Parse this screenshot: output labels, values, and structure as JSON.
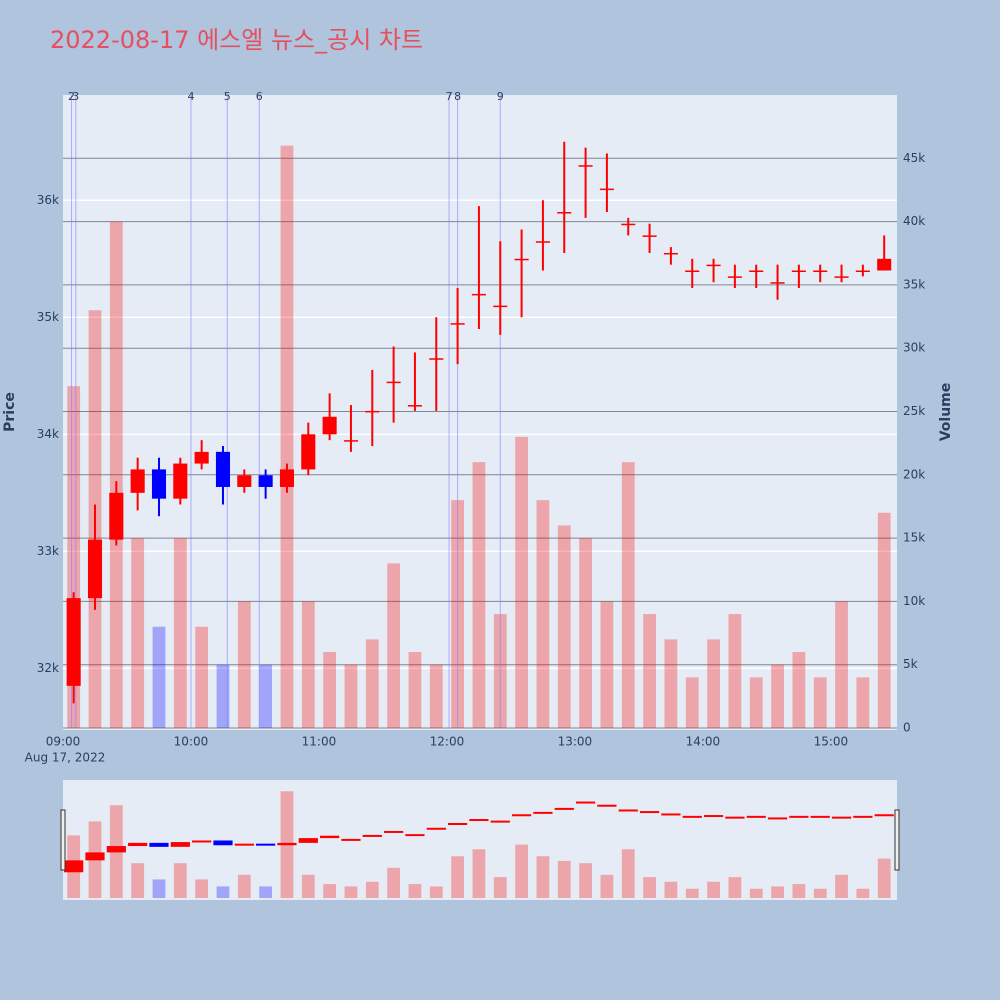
{
  "chart_data": {
    "type": "candlestick",
    "title": "2022-08-17 에스엘 뉴스_공시 차트",
    "title_color": "#e5505f",
    "ylabel": "Price",
    "y2label": "Volume",
    "x": [
      "09:00",
      "09:10",
      "09:20",
      "09:30",
      "09:40",
      "09:50",
      "10:00",
      "10:10",
      "10:20",
      "10:30",
      "10:40",
      "10:50",
      "11:00",
      "11:10",
      "11:20",
      "11:30",
      "11:40",
      "11:50",
      "12:00",
      "12:10",
      "12:20",
      "12:30",
      "12:40",
      "12:50",
      "13:00",
      "13:10",
      "13:20",
      "13:30",
      "13:40",
      "13:50",
      "14:00",
      "14:10",
      "14:20",
      "14:30",
      "14:40",
      "14:50",
      "15:00",
      "15:10",
      "15:20"
    ],
    "open": [
      31850,
      32600,
      33100,
      33500,
      33700,
      33450,
      33750,
      33850,
      33550,
      33650,
      33550,
      33700,
      34000,
      33950,
      34200,
      34450,
      34250,
      34650,
      34950,
      35200,
      35100,
      35500,
      35650,
      35900,
      36300,
      36100,
      35800,
      35700,
      35550,
      35400,
      35450,
      35350,
      35400,
      35300,
      35400,
      35400,
      35350,
      35400,
      35400
    ],
    "high": [
      32650,
      33400,
      33600,
      33800,
      33800,
      33800,
      33950,
      33900,
      33700,
      33700,
      33750,
      34100,
      34350,
      34250,
      34550,
      34750,
      34700,
      35000,
      35250,
      35950,
      35650,
      35750,
      36000,
      36500,
      36450,
      36400,
      35850,
      35800,
      35600,
      35500,
      35500,
      35450,
      35450,
      35450,
      35450,
      35450,
      35450,
      35450,
      35700
    ],
    "low": [
      31700,
      32500,
      33050,
      33350,
      33300,
      33400,
      33700,
      33400,
      33500,
      33450,
      33500,
      33650,
      33950,
      33850,
      33900,
      34100,
      34200,
      34200,
      34600,
      34900,
      34850,
      35000,
      35400,
      35550,
      35850,
      35900,
      35700,
      35550,
      35450,
      35250,
      35300,
      35250,
      35250,
      35150,
      35250,
      35300,
      35300,
      35350,
      35400
    ],
    "close": [
      32600,
      33100,
      33500,
      33700,
      33450,
      33750,
      33850,
      33550,
      33650,
      33550,
      33700,
      34000,
      34150,
      33950,
      34200,
      34450,
      34250,
      34650,
      34950,
      35200,
      35100,
      35500,
      35650,
      35900,
      36300,
      36100,
      35800,
      35700,
      35550,
      35400,
      35450,
      35350,
      35400,
      35300,
      35400,
      35400,
      35350,
      35400,
      35500
    ],
    "volume": [
      27000,
      33000,
      40000,
      15000,
      8000,
      15000,
      8000,
      5000,
      10000,
      5000,
      46000,
      10000,
      6000,
      5000,
      7000,
      13000,
      6000,
      5000,
      18000,
      21000,
      9000,
      23000,
      18000,
      16000,
      15000,
      10000,
      21000,
      9000,
      7000,
      4000,
      7000,
      9000,
      4000,
      5000,
      6000,
      4000,
      10000,
      4000,
      17000
    ],
    "increasing_color": "#ff0000",
    "decreasing_color": "#0000ff",
    "xlim": [
      "09:00",
      "15:31"
    ],
    "xticks": [
      "09:00",
      "10:00",
      "11:00",
      "12:00",
      "13:00",
      "14:00",
      "15:00"
    ],
    "x_sublabel": "Aug 17, 2022",
    "ylim": [
      31490,
      36900
    ],
    "yticks": [
      {
        "value": 32000,
        "label": "32k"
      },
      {
        "value": 33000,
        "label": "33k"
      },
      {
        "value": 34000,
        "label": "34k"
      },
      {
        "value": 35000,
        "label": "35k"
      },
      {
        "value": 36000,
        "label": "36k"
      }
    ],
    "y2lim": [
      0,
      50000
    ],
    "y2ticks": [
      0,
      {
        "value": 5000,
        "label": "5k"
      },
      {
        "value": 10000,
        "label": "10k"
      },
      {
        "value": 15000,
        "label": "15k"
      },
      {
        "value": 20000,
        "label": "20k"
      },
      {
        "value": 25000,
        "label": "25k"
      },
      {
        "value": 30000,
        "label": "30k"
      },
      {
        "value": 35000,
        "label": "35k"
      },
      {
        "value": 40000,
        "label": "40k"
      },
      {
        "value": 45000,
        "label": "45k"
      }
    ],
    "disclosures": [
      {
        "label": "2",
        "x": "09:04"
      },
      {
        "label": "3",
        "x": "09:06"
      },
      {
        "label": "4",
        "x": "10:00"
      },
      {
        "label": "5",
        "x": "10:17"
      },
      {
        "label": "6",
        "x": "10:32"
      },
      {
        "label": "7",
        "x": "12:01"
      },
      {
        "label": "8",
        "x": "12:05"
      },
      {
        "label": "9",
        "x": "12:25"
      }
    ],
    "grid": true,
    "rangeslider": true
  }
}
